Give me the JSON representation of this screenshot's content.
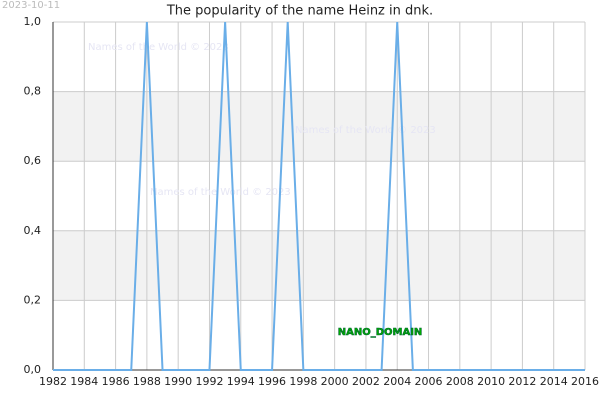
{
  "chart_data": {
    "type": "line",
    "title": "The popularity of the name Heinz in dnk.",
    "date_stamp": "2023-10-11",
    "watermarks": [
      "Names of the World © 2023",
      "Names of the World © 2023",
      "Names of the World © 2023"
    ],
    "annotation": "NANO_DOMAIN",
    "x": [
      1982,
      1983,
      1984,
      1985,
      1986,
      1987,
      1988,
      1989,
      1990,
      1991,
      1992,
      1993,
      1994,
      1995,
      1996,
      1997,
      1998,
      1999,
      2000,
      2001,
      2002,
      2003,
      2004,
      2005,
      2006,
      2007,
      2008,
      2009,
      2010,
      2011,
      2012,
      2013,
      2014,
      2015,
      2016
    ],
    "series": [
      {
        "color": "#6aaee8",
        "values": [
          0,
          0,
          0,
          0,
          0,
          0,
          1,
          0,
          0,
          0,
          0,
          1,
          0,
          0,
          0,
          1,
          0,
          0,
          0,
          0,
          0,
          0,
          1,
          0,
          0,
          0,
          0,
          0,
          0,
          0,
          0,
          0,
          0,
          0,
          0
        ]
      }
    ],
    "xlim": [
      1982,
      2016
    ],
    "xticks": [
      1982,
      1984,
      1986,
      1988,
      1990,
      1992,
      1994,
      1996,
      1998,
      2000,
      2002,
      2004,
      2006,
      2008,
      2010,
      2012,
      2014,
      2016
    ],
    "ylim": [
      0,
      1
    ],
    "yticks": [
      {
        "value": 0,
        "label": "0,0"
      },
      {
        "value": 0.2,
        "label": "0,2"
      },
      {
        "value": 0.4,
        "label": "0,4"
      },
      {
        "value": 0.6,
        "label": "0,6"
      },
      {
        "value": 0.8,
        "label": "0,8"
      },
      {
        "value": 1,
        "label": "1,0"
      }
    ],
    "grid": true
  }
}
